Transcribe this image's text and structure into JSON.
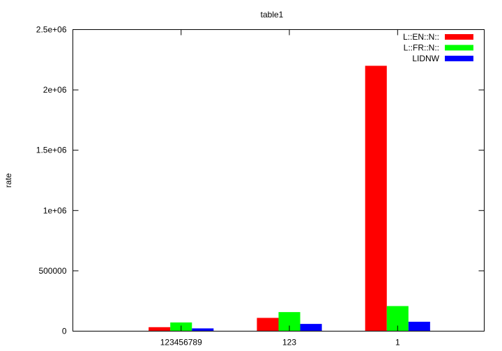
{
  "chart_data": {
    "type": "bar",
    "title": "table1",
    "xlabel": "",
    "ylabel": "rate",
    "categories": [
      "123456789",
      "123",
      "1"
    ],
    "series": [
      {
        "name": "L::EN::N::",
        "color": "#ff0000",
        "values": [
          33000,
          110000,
          2200000
        ]
      },
      {
        "name": "L::FR::N::",
        "color": "#00ff00",
        "values": [
          72000,
          158000,
          208000
        ]
      },
      {
        "name": "LIDNW",
        "color": "#0000ff",
        "values": [
          23000,
          60000,
          78000
        ]
      }
    ],
    "ylim": [
      0,
      2500000
    ],
    "xlim": [
      -1,
      2.8
    ],
    "yticks": [
      {
        "value": 0,
        "label": "0"
      },
      {
        "value": 500000,
        "label": "500000"
      },
      {
        "value": 1000000,
        "label": "1e+06"
      },
      {
        "value": 1500000,
        "label": "1.5e+06"
      },
      {
        "value": 2000000,
        "label": "2e+06"
      },
      {
        "value": 2500000,
        "label": "2.5e+06"
      }
    ],
    "grid": false,
    "legend_position": "top-right"
  }
}
